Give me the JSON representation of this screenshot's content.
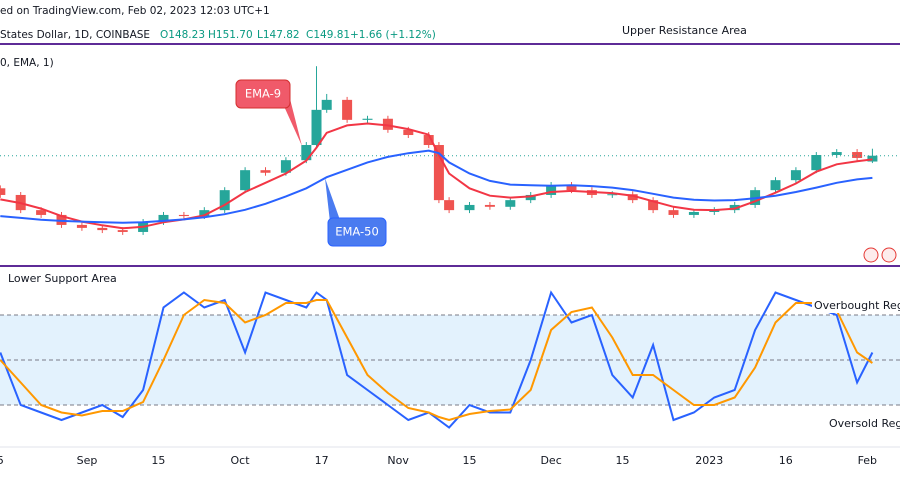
{
  "header": {
    "source": "ed on TradingView.com, Feb 02, 2023 12:03 UTC+1",
    "symbol": "States Dollar, 1D, COINBASE",
    "open": "O148.23",
    "high": "H151.70",
    "low": "L147.82",
    "close": "C149.81",
    "change": "+1.66 (+1.12%)",
    "indicator": "0, EMA, 1)"
  },
  "annotations": {
    "upper": "Upper Resistance Area",
    "lower": "Lower Support Area",
    "overbought": "Overbought Regi",
    "oversold": "Oversold Regi"
  },
  "chart_data": [
    {
      "type": "candlestick",
      "x": [
        -17,
        -13,
        -9,
        -5,
        -1,
        3,
        7,
        11,
        15,
        19,
        23,
        27,
        31,
        35,
        39,
        43,
        45,
        47,
        51,
        55,
        59,
        63,
        67,
        69,
        71,
        75,
        79,
        83,
        87,
        91,
        95,
        99,
        103,
        107,
        111,
        115,
        119,
        123,
        127,
        131,
        135,
        139,
        143,
        147,
        151,
        154
      ],
      "open": [
        141,
        139.2,
        135.1,
        133.8,
        131.1,
        130.3,
        129.7,
        129.2,
        131.9,
        133.8,
        133.5,
        135.1,
        140.5,
        145.9,
        145.2,
        148.6,
        152.7,
        162.2,
        164.9,
        159.5,
        159.8,
        156.8,
        155.4,
        152.7,
        137.8,
        135.1,
        136.5,
        136.0,
        137.8,
        139.2,
        141.9,
        140.5,
        139.2,
        139.4,
        137.8,
        135.1,
        133.8,
        134.6,
        135.1,
        136.5,
        140.5,
        143.2,
        145.9,
        150.0,
        150.8,
        148.23
      ],
      "high": [
        141.8,
        140.0,
        135.9,
        134.6,
        131.9,
        131.1,
        130.5,
        132.7,
        134.6,
        134.6,
        135.9,
        141.3,
        146.7,
        146.7,
        149.4,
        153.5,
        174.0,
        166.5,
        165.7,
        160.6,
        160.6,
        157.6,
        156.2,
        153.5,
        138.6,
        137.3,
        137.3,
        138.6,
        140.0,
        142.7,
        142.7,
        141.3,
        140.2,
        140.2,
        138.6,
        135.9,
        135.4,
        135.9,
        137.3,
        141.3,
        144.0,
        146.7,
        150.8,
        151.6,
        151.6,
        151.7
      ],
      "low": [
        138.4,
        134.3,
        133.0,
        130.3,
        129.5,
        128.9,
        128.4,
        128.4,
        131.1,
        132.7,
        132.7,
        134.3,
        139.7,
        144.4,
        144.4,
        147.8,
        151.9,
        161.4,
        158.7,
        158.7,
        156.0,
        154.6,
        151.9,
        137.0,
        134.3,
        134.3,
        135.2,
        135.2,
        137.0,
        138.4,
        139.7,
        138.4,
        138.4,
        137.0,
        134.3,
        133.0,
        133.0,
        133.8,
        134.3,
        135.7,
        139.7,
        142.4,
        145.1,
        149.2,
        148.4,
        147.82
      ],
      "close": [
        139.2,
        135.1,
        133.8,
        131.1,
        130.3,
        129.7,
        129.2,
        131.9,
        133.8,
        133.5,
        135.1,
        140.5,
        145.9,
        145.2,
        148.6,
        152.7,
        162.2,
        164.9,
        159.5,
        159.8,
        156.8,
        155.4,
        152.7,
        137.8,
        135.1,
        136.5,
        136.0,
        137.8,
        139.2,
        141.9,
        140.5,
        139.2,
        139.4,
        137.8,
        135.1,
        133.8,
        134.6,
        135.1,
        136.5,
        140.5,
        143.2,
        145.9,
        150.0,
        150.8,
        149.2,
        149.81
      ],
      "up_color": "#26a69a",
      "down_color": "#ef5350",
      "series": [
        {
          "name": "EMA-9",
          "color": "#f23645",
          "values": [
            138,
            137,
            135.5,
            133.5,
            132,
            131,
            130.2,
            130.6,
            131.8,
            132.6,
            133.7,
            136.5,
            140,
            142.5,
            145,
            148.5,
            152,
            156,
            158,
            158.5,
            158,
            157,
            155.5,
            150,
            145,
            141,
            139,
            138.5,
            138.8,
            140,
            140.3,
            140,
            139.7,
            139,
            137.5,
            136,
            135.2,
            135.1,
            135.5,
            137.5,
            139.8,
            142.3,
            145.5,
            147.5,
            148.3,
            148.8
          ]
        },
        {
          "name": "EMA-50",
          "color": "#2962ff",
          "values": [
            133.5,
            133,
            132.5,
            132.2,
            132,
            131.8,
            131.7,
            131.8,
            132.2,
            132.6,
            133.2,
            134,
            135.2,
            136.8,
            138.8,
            141,
            142.5,
            144,
            146,
            148,
            149.5,
            150.5,
            151.2,
            150.5,
            148,
            145,
            143,
            142,
            141.8,
            141.7,
            141.8,
            141.6,
            141.2,
            140.5,
            139.5,
            138.5,
            137.9,
            137.7,
            137.8,
            138.3,
            139,
            140,
            141.2,
            142.5,
            143.4,
            143.8
          ]
        }
      ],
      "xlim": [
        -17.06,
        159.41
      ],
      "ylim": [
        120,
        180
      ]
    },
    {
      "type": "line",
      "x": [
        -17,
        -13,
        -9,
        -5,
        -1,
        3,
        7,
        11,
        15,
        19,
        23,
        27,
        31,
        35,
        39,
        43,
        45,
        47,
        51,
        55,
        59,
        63,
        67,
        69,
        71,
        75,
        79,
        83,
        87,
        91,
        95,
        99,
        103,
        107,
        111,
        115,
        119,
        123,
        127,
        131,
        135,
        139,
        143,
        147,
        151,
        154
      ],
      "series": [
        {
          "color": "#2962ff",
          "values": [
            55,
            20,
            15,
            10,
            15,
            20,
            12,
            30,
            85,
            95,
            85,
            90,
            55,
            95,
            90,
            85,
            95,
            90,
            40,
            30,
            20,
            10,
            15,
            10,
            5,
            20,
            15,
            15,
            50,
            95,
            75,
            80,
            40,
            25,
            60,
            10,
            15,
            25,
            30,
            70,
            95,
            90,
            85,
            80,
            35,
            55
          ]
        },
        {
          "color": "#ff9800",
          "values": [
            50,
            35,
            20,
            15,
            13,
            16,
            16,
            22,
            50,
            80,
            90,
            88,
            75,
            80,
            88,
            88,
            90,
            90,
            65,
            40,
            28,
            18,
            15,
            12,
            10,
            14,
            16,
            17,
            30,
            70,
            82,
            85,
            65,
            40,
            40,
            30,
            20,
            20,
            25,
            45,
            75,
            88,
            88,
            83,
            55,
            48
          ]
        }
      ],
      "levels": [
        80,
        50,
        20
      ],
      "band_color": "#e3f2fd",
      "xlim": [
        -17.06,
        159.41
      ],
      "ylim": [
        -7,
        103
      ],
      "xticks": [
        {
          "value": -17,
          "label": "5"
        },
        {
          "value": 0,
          "label": "Sep"
        },
        {
          "value": 14,
          "label": "15"
        },
        {
          "value": 30,
          "label": "Oct"
        },
        {
          "value": 46,
          "label": "17"
        },
        {
          "value": 61,
          "label": "Nov"
        },
        {
          "value": 75,
          "label": "15"
        },
        {
          "value": 91,
          "label": "Dec"
        },
        {
          "value": 105,
          "label": "15"
        },
        {
          "value": 122,
          "label": "2023"
        },
        {
          "value": 137,
          "label": "16"
        },
        {
          "value": 153,
          "label": "Feb"
        }
      ]
    }
  ]
}
